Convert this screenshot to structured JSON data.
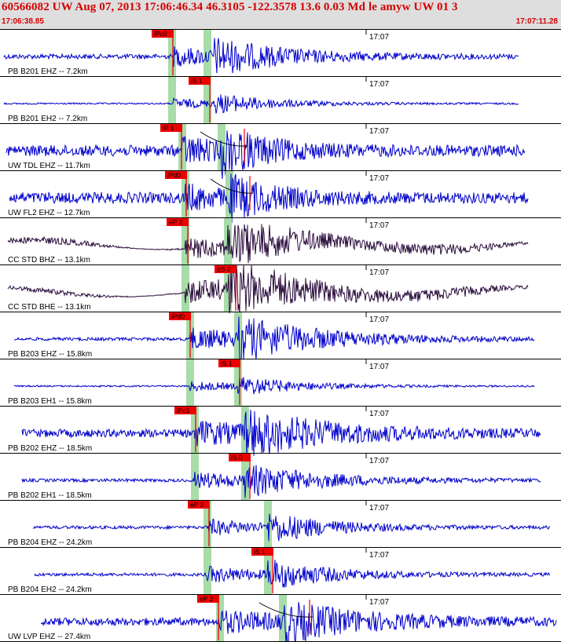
{
  "header": {
    "title": "60566082 UW Aug 07, 2013 17:06:46.34   46.3105 -122.3578 13.6 0.03 Md le amyw UW 01   3",
    "start_time": "17:06:38.85",
    "end_time": "17:07:11.28"
  },
  "minute_label": "17:07",
  "colors": {
    "trace_blue": "#0000cc",
    "trace_dark": "#2a0c3c",
    "pick_red": "#ee0000",
    "window_green": "#a8dca8",
    "header_bg": "#dedede"
  },
  "traces": [
    {
      "label": "PB B201 EHZ -- 7.2km",
      "pick": "iPc0",
      "color": "blue"
    },
    {
      "label": "PB B201 EH2 -- 7.2km",
      "pick": "iS 1",
      "color": "blue"
    },
    {
      "label": "UW TDL EHZ -- 11.7km",
      "pick": "iP 1",
      "color": "blue"
    },
    {
      "label": "UW FL2 EHZ -- 12.7km",
      "pick": "iPd0",
      "color": "blue"
    },
    {
      "label": "CC STD BHZ -- 13.1km",
      "pick": "eP 2",
      "color": "dark"
    },
    {
      "label": "CC STD BHE -- 13.1km",
      "pick": "eS 2",
      "color": "dark"
    },
    {
      "label": "PB B203 EHZ -- 15.8km",
      "pick": "iPd0",
      "color": "blue"
    },
    {
      "label": "PB B203 EH1 -- 15.8km",
      "pick": "iS 1",
      "color": "blue"
    },
    {
      "label": "PB B202 EHZ -- 18.5km",
      "pick": "iPc1",
      "color": "blue"
    },
    {
      "label": "PB B202 EH1 -- 18.5km",
      "pick": "iS 0",
      "color": "blue"
    },
    {
      "label": "PB B204 EHZ -- 24.2km",
      "pick": "eP 2",
      "color": "blue"
    },
    {
      "label": "PB B204 EH2 -- 24.2km",
      "pick": "iS 1",
      "color": "blue"
    },
    {
      "label": "UW LVP EHZ -- 27.4km",
      "pick": "eP 2",
      "color": "blue"
    }
  ]
}
